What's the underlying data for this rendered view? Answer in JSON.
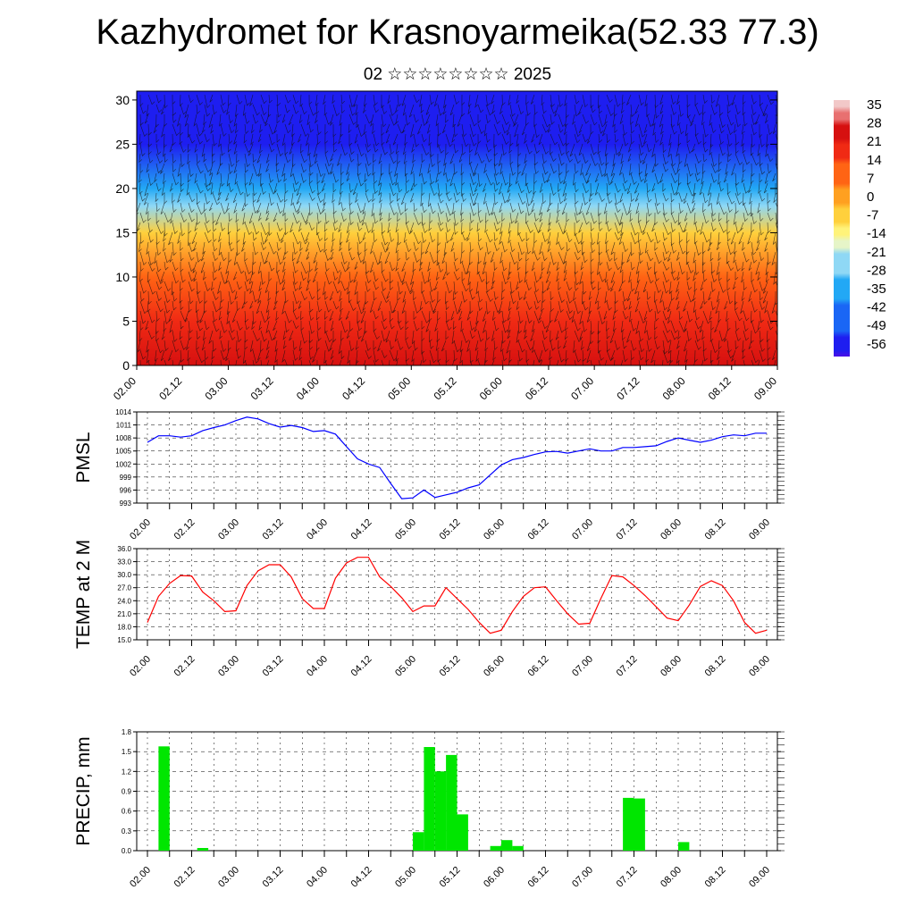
{
  "title": "Kazhydromet for Krasnoyarmeika(52.33 77.3)",
  "subtitle": "02 ☆☆☆☆☆☆☆☆ 2025",
  "time_ticks": [
    "02.00",
    "02.12",
    "03.00",
    "03.12",
    "04.00",
    "04.12",
    "05.00",
    "05.12",
    "06.00",
    "06.12",
    "07.00",
    "07.12",
    "08.00",
    "08.12",
    "09.00"
  ],
  "chart_data": [
    {
      "type": "heatmap",
      "title": "",
      "xlabel": "",
      "ylabel": "",
      "ylim": [
        0,
        31
      ],
      "y_ticks": [
        0,
        5,
        10,
        15,
        20,
        25,
        30
      ],
      "colorbar_labels": [
        "35",
        "28",
        "21",
        "14",
        "7",
        "0",
        "-7",
        "-14",
        "-21",
        "-28",
        "-35",
        "-42",
        "-49",
        "-56"
      ],
      "colorbar_range": [
        -60,
        38
      ],
      "temperature_by_height": [
        {
          "height": 0,
          "temp": 30
        },
        {
          "height": 5,
          "temp": 21
        },
        {
          "height": 10,
          "temp": 10
        },
        {
          "height": 15,
          "temp": -8
        },
        {
          "height": 18,
          "temp": -20
        },
        {
          "height": 20,
          "temp": -33
        },
        {
          "height": 25,
          "temp": -52
        },
        {
          "height": 31,
          "temp": -58
        }
      ],
      "wind_barbs": true
    },
    {
      "type": "line",
      "ylabel": "PMSL",
      "ylim": [
        993,
        1014
      ],
      "y_ticks": [
        993,
        996,
        999,
        1002,
        1005,
        1008,
        1011,
        1014
      ],
      "color": "#0000ff",
      "x": [
        0,
        1,
        2,
        3,
        4,
        5,
        6,
        7,
        8,
        9,
        10,
        11,
        12,
        13,
        14,
        15,
        16,
        17,
        18,
        19,
        20,
        21,
        22,
        23,
        24,
        25,
        26,
        27,
        28,
        29,
        30,
        31,
        32,
        33,
        34,
        35,
        36,
        37,
        38,
        39,
        40,
        41,
        42,
        43,
        44,
        45,
        46,
        47,
        48,
        49,
        50,
        51,
        52,
        53,
        54,
        55,
        56
      ],
      "values": [
        1007,
        1008.5,
        1008.5,
        1008.2,
        1008.5,
        1009.7,
        1010.4,
        1011,
        1012,
        1012.8,
        1012.4,
        1011.3,
        1010.5,
        1010.9,
        1010.4,
        1009.5,
        1009.7,
        1008.9,
        1006,
        1003.2,
        1002,
        1001.2,
        997.5,
        994,
        994.2,
        996,
        994.3,
        994.9,
        995.5,
        996.5,
        997.2,
        999.5,
        1001.8,
        1003,
        1003.5,
        1004.2,
        1004.8,
        1004.9,
        1004.5,
        1005,
        1005.5,
        1005,
        1005,
        1005.8,
        1005.8,
        1006,
        1006.2,
        1007.2,
        1008,
        1007.5,
        1007,
        1007.5,
        1008.3,
        1008.7,
        1008.5,
        1009.1,
        1009.1
      ]
    },
    {
      "type": "line",
      "ylabel": "TEMP at 2 M",
      "ylim": [
        15,
        36
      ],
      "y_ticks": [
        "15.0",
        "18.0",
        "21.0",
        "24.0",
        "27.0",
        "30.0",
        "33.0",
        "36.0"
      ],
      "color": "#ff0000",
      "x": [
        0,
        1,
        2,
        3,
        4,
        5,
        6,
        7,
        8,
        9,
        10,
        11,
        12,
        13,
        14,
        15,
        16,
        17,
        18,
        19,
        20,
        21,
        22,
        23,
        24,
        25,
        26,
        27,
        28,
        29,
        30,
        31,
        32,
        33,
        34,
        35,
        36,
        37,
        38,
        39,
        40,
        41,
        42,
        43,
        44,
        45,
        46,
        47,
        48,
        49,
        50,
        51,
        52,
        53,
        54,
        55,
        56
      ],
      "values": [
        19,
        25,
        28,
        29.8,
        29.7,
        26,
        24,
        21.5,
        21.7,
        27.5,
        30.9,
        32.3,
        32.3,
        29.5,
        24.5,
        22.2,
        22.2,
        29.2,
        32.7,
        34,
        34,
        29.5,
        27.3,
        24.7,
        21.5,
        22.8,
        22.8,
        27,
        24.5,
        22,
        19,
        16.5,
        17.2,
        21.5,
        25,
        27,
        27.2,
        24,
        21,
        18.6,
        18.8,
        24.5,
        29.8,
        29.5,
        27.5,
        25.2,
        22.6,
        20,
        19.4,
        23,
        27.3,
        28.6,
        27.5,
        24,
        19,
        16.5,
        17.2
      ]
    },
    {
      "type": "bar",
      "ylabel": "PRECIP, mm",
      "ylim": [
        0,
        1.8
      ],
      "y_ticks": [
        "0.0",
        "0.3",
        "0.6",
        "0.9",
        "1.2",
        "1.5",
        "1.8"
      ],
      "color": "#00e600",
      "bar_width_steps": 1,
      "bars": [
        {
          "x": 1.5,
          "value": 1.58
        },
        {
          "x": 5.0,
          "value": 0.04
        },
        {
          "x": 24.5,
          "value": 0.28
        },
        {
          "x": 25.5,
          "value": 1.57
        },
        {
          "x": 26.5,
          "value": 1.2
        },
        {
          "x": 27.5,
          "value": 1.45
        },
        {
          "x": 28.5,
          "value": 0.55
        },
        {
          "x": 31.5,
          "value": 0.07
        },
        {
          "x": 32.5,
          "value": 0.16
        },
        {
          "x": 33.5,
          "value": 0.07
        },
        {
          "x": 43.5,
          "value": 0.8
        },
        {
          "x": 44.5,
          "value": 0.79
        },
        {
          "x": 48.5,
          "value": 0.13
        }
      ]
    }
  ]
}
